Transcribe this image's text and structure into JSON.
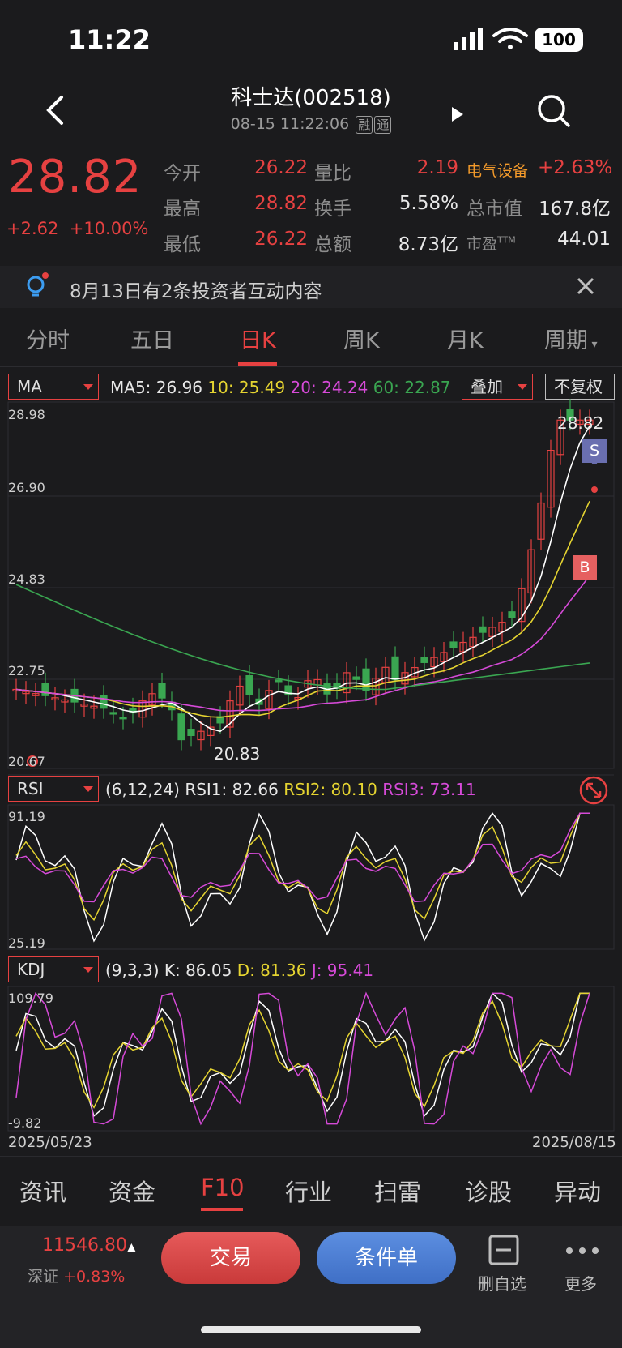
{
  "status": {
    "time": "11:22",
    "battery": "100"
  },
  "header": {
    "title": "科士达(002518)",
    "datetime": "08-15 11:22:06",
    "badges": [
      "融",
      "通"
    ]
  },
  "quote": {
    "price": "28.82",
    "change": "+2.62",
    "change_pct": "+10.00%",
    "rows": [
      {
        "l1": "今开",
        "v1": "26.22",
        "l2": "量比",
        "v2": "2.19",
        "l3": "电气设备",
        "v3": "+2.63%"
      },
      {
        "l1": "最高",
        "v1": "28.82",
        "l2": "换手",
        "v2": "5.58%",
        "l3": "总市值",
        "v3": "167.8亿"
      },
      {
        "l1": "最低",
        "v1": "26.22",
        "l2": "总额",
        "v2": "8.73亿",
        "l3": "市盈",
        "v3": "44.01",
        "l3_sup": "TTM"
      }
    ]
  },
  "notice": {
    "text": "8月13日有2条投资者互动内容"
  },
  "tabs": [
    "分时",
    "五日",
    "日K",
    "周K",
    "月K",
    "周期"
  ],
  "active_tab": "日K",
  "ma_panel": {
    "selector": "MA",
    "ma5": "MA5: 26.96",
    "ma10": "10: 25.49",
    "ma20": "20: 24.24",
    "ma60": "60: 22.87",
    "overlay": "叠加",
    "adjust": "不复权",
    "y_ticks": [
      "28.98",
      "26.90",
      "24.83",
      "22.75",
      "20.67"
    ],
    "high_label": "28.82",
    "low_label": "20.83",
    "sell_marker": "S",
    "buy_marker": "B"
  },
  "rsi_panel": {
    "selector": "RSI",
    "params": "(6,12,24)",
    "rsi1": "RSI1: 82.66",
    "rsi2": "RSI2: 80.10",
    "rsi3": "RSI3: 73.11",
    "y_ticks": [
      "91.19",
      "25.19"
    ]
  },
  "kdj_panel": {
    "selector": "KDJ",
    "params": "(9,3,3)",
    "k": "K: 86.05",
    "d": "D: 81.36",
    "j": "J: 95.41",
    "y_ticks": [
      "109.79",
      "-9.82"
    ],
    "date_start": "2025/05/23",
    "date_end": "2025/08/15"
  },
  "bottom_tabs": [
    "资讯",
    "资金",
    "F10",
    "行业",
    "扫雷",
    "诊股",
    "异动"
  ],
  "active_bottom_tab": "F10",
  "index": {
    "value": "11546.80",
    "name": "深证",
    "change": "+0.83%"
  },
  "buttons": {
    "trade": "交易",
    "condition": "条件单",
    "remove": "删自选",
    "more": "更多"
  },
  "colors": {
    "up": "#e64141",
    "down": "#3aa651",
    "ma5": "#ffffff",
    "ma10": "#e5d431",
    "ma20": "#d64ad8",
    "ma60": "#3aa651"
  }
}
